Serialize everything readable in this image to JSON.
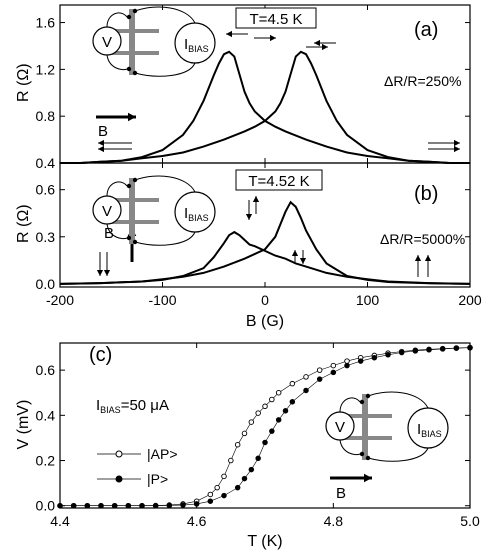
{
  "chart_data": [
    {
      "panel_id": "(a)",
      "type": "line",
      "xlabel": "",
      "ylabel": "R (Ω)",
      "xlim": [
        -200,
        200
      ],
      "ylim": [
        0.4,
        1.75
      ],
      "yticks": [
        0.4,
        0.8,
        1.2,
        1.6
      ],
      "ytick_labels": [
        "0.4",
        "0.8",
        "1.2",
        "1.6"
      ],
      "temperature_label": "T=4.5 K",
      "ratio_label": "ΔR/R=250%",
      "field_label": "B",
      "bias_label": "I",
      "bias_subscript": "BIAS",
      "voltmeter_label": "V",
      "series": [
        {
          "x": [
            -200,
            -180,
            -160,
            -140,
            -120,
            -100,
            -80,
            -70,
            -60,
            -50,
            -45,
            -40,
            -35,
            -30,
            -25,
            -20,
            -15,
            -10,
            0,
            10,
            20,
            40,
            60,
            80,
            100,
            120,
            140,
            160,
            180,
            200
          ],
          "y": [
            0.4,
            0.4,
            0.41,
            0.42,
            0.45,
            0.51,
            0.64,
            0.76,
            0.93,
            1.15,
            1.25,
            1.33,
            1.35,
            1.31,
            1.16,
            1.01,
            0.91,
            0.84,
            0.76,
            0.71,
            0.67,
            0.6,
            0.54,
            0.49,
            0.46,
            0.44,
            0.42,
            0.41,
            0.4,
            0.4
          ]
        },
        {
          "x": [
            -200,
            -180,
            -160,
            -140,
            -120,
            -100,
            -80,
            -60,
            -40,
            -20,
            -10,
            0,
            10,
            15,
            20,
            25,
            30,
            35,
            40,
            45,
            50,
            60,
            70,
            80,
            100,
            120,
            140,
            160,
            180,
            200
          ],
          "y": [
            0.4,
            0.4,
            0.41,
            0.42,
            0.44,
            0.46,
            0.49,
            0.54,
            0.6,
            0.67,
            0.71,
            0.76,
            0.84,
            0.91,
            1.01,
            1.16,
            1.31,
            1.35,
            1.33,
            1.25,
            1.15,
            0.93,
            0.76,
            0.64,
            0.51,
            0.45,
            0.42,
            0.41,
            0.4,
            0.4
          ]
        }
      ]
    },
    {
      "panel_id": "(b)",
      "type": "line",
      "xlabel": "B (G)",
      "ylabel": "R (Ω)",
      "xlim": [
        -200,
        200
      ],
      "ylim": [
        -0.02,
        0.77
      ],
      "xticks": [
        -200,
        -100,
        0,
        100,
        200
      ],
      "xtick_labels": [
        "-200",
        "-100",
        "0",
        "100",
        "200"
      ],
      "yticks": [
        0.0,
        0.3,
        0.6
      ],
      "ytick_labels": [
        "0.0",
        "0.3",
        "0.6"
      ],
      "temperature_label": "T=4.52 K",
      "ratio_label": "ΔR/R=5000%",
      "field_label": "B",
      "bias_label": "I",
      "bias_subscript": "BIAS",
      "voltmeter_label": "V",
      "series": [
        {
          "x": [
            -200,
            -160,
            -120,
            -100,
            -80,
            -60,
            -50,
            -40,
            -35,
            -30,
            -25,
            -20,
            -15,
            -10,
            0,
            10,
            20,
            30,
            40,
            60,
            80,
            100,
            120,
            160,
            200
          ],
          "y": [
            0.0,
            0.005,
            0.015,
            0.025,
            0.05,
            0.1,
            0.17,
            0.26,
            0.31,
            0.33,
            0.31,
            0.28,
            0.25,
            0.24,
            0.21,
            0.18,
            0.16,
            0.13,
            0.11,
            0.07,
            0.045,
            0.03,
            0.015,
            0.005,
            0.0
          ]
        },
        {
          "x": [
            -200,
            -160,
            -120,
            -100,
            -80,
            -60,
            -40,
            -20,
            0,
            10,
            15,
            20,
            25,
            30,
            35,
            40,
            50,
            60,
            80,
            100,
            120,
            160,
            200
          ],
          "y": [
            0.0,
            0.005,
            0.015,
            0.03,
            0.045,
            0.07,
            0.11,
            0.16,
            0.22,
            0.3,
            0.38,
            0.46,
            0.52,
            0.49,
            0.42,
            0.34,
            0.22,
            0.13,
            0.05,
            0.025,
            0.012,
            0.004,
            0.0
          ]
        }
      ]
    },
    {
      "panel_id": "(c)",
      "type": "scatter",
      "xlabel": "T (K)",
      "ylabel": "V (mV)",
      "xlim": [
        4.4,
        5.0
      ],
      "ylim": [
        -0.01,
        0.72
      ],
      "xticks": [
        4.4,
        4.6,
        4.8,
        5.0
      ],
      "xtick_labels": [
        "4.4",
        "4.6",
        "4.8",
        "5.0"
      ],
      "yticks": [
        0.0,
        0.2,
        0.4,
        0.6
      ],
      "ytick_labels": [
        "0.0",
        "0.2",
        "0.4",
        "0.6"
      ],
      "bias_label": "I",
      "bias_subscript": "BIAS",
      "bias_value": "=50 μA",
      "field_label": "B",
      "voltmeter_label": "V",
      "legend_position": "left",
      "series": [
        {
          "name": "|AP>",
          "marker": "open-circle",
          "x": [
            4.4,
            4.42,
            4.44,
            4.46,
            4.48,
            4.5,
            4.52,
            4.54,
            4.56,
            4.58,
            4.6,
            4.62,
            4.63,
            4.64,
            4.65,
            4.66,
            4.67,
            4.68,
            4.69,
            4.7,
            4.71,
            4.72,
            4.74,
            4.76,
            4.78,
            4.8,
            4.82,
            4.84,
            4.86,
            4.88,
            4.9,
            4.92,
            4.94,
            4.96,
            4.98,
            5.0
          ],
          "y": [
            0.0,
            0.0,
            0.0,
            0.0,
            0.0,
            0.0,
            0.0,
            0.001,
            0.003,
            0.008,
            0.02,
            0.05,
            0.08,
            0.13,
            0.2,
            0.27,
            0.32,
            0.37,
            0.41,
            0.44,
            0.47,
            0.5,
            0.54,
            0.57,
            0.6,
            0.62,
            0.64,
            0.655,
            0.665,
            0.675,
            0.682,
            0.688,
            0.692,
            0.695,
            0.698,
            0.7
          ]
        },
        {
          "name": "|P>",
          "marker": "filled-circle",
          "x": [
            4.4,
            4.42,
            4.44,
            4.46,
            4.48,
            4.5,
            4.52,
            4.54,
            4.56,
            4.58,
            4.6,
            4.62,
            4.64,
            4.66,
            4.67,
            4.68,
            4.69,
            4.7,
            4.71,
            4.72,
            4.73,
            4.74,
            4.76,
            4.78,
            4.8,
            4.82,
            4.84,
            4.86,
            4.88,
            4.9,
            4.92,
            4.94,
            4.96,
            4.98,
            5.0
          ],
          "y": [
            0.0,
            0.0,
            0.0,
            0.0,
            0.0,
            0.0,
            0.0,
            0.0,
            0.001,
            0.003,
            0.008,
            0.02,
            0.045,
            0.08,
            0.12,
            0.16,
            0.21,
            0.28,
            0.33,
            0.38,
            0.42,
            0.46,
            0.51,
            0.56,
            0.59,
            0.62,
            0.64,
            0.655,
            0.668,
            0.678,
            0.685,
            0.69,
            0.694,
            0.697,
            0.699
          ]
        }
      ]
    }
  ]
}
